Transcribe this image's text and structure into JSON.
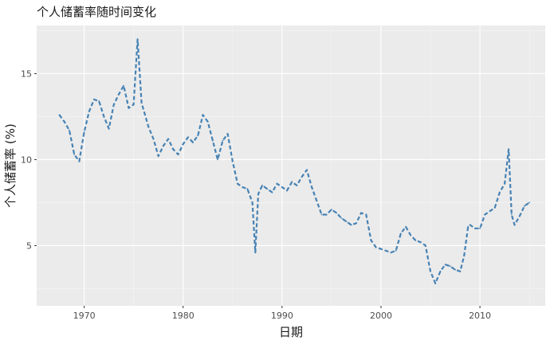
{
  "chart_data": {
    "type": "line",
    "title": "个人储蓄率随时间变化",
    "xlabel": "日期",
    "ylabel": "个人储蓄率 (%)",
    "xlim": [
      1965.2,
      2016.6
    ],
    "ylim": [
      1.5,
      17.8
    ],
    "x_ticks": [
      1970,
      1980,
      1990,
      2000,
      2010
    ],
    "x_tick_labels": [
      "1970",
      "1980",
      "1990",
      "2000",
      "2010"
    ],
    "y_ticks": [
      5,
      10,
      15
    ],
    "y_tick_labels": [
      "5",
      "10",
      "15"
    ],
    "grid": true,
    "line_style": "dashed",
    "series": [
      {
        "name": "",
        "color": "#4682B4",
        "x": [
          1967.5,
          1968.0,
          1968.5,
          1969.0,
          1969.5,
          1970.0,
          1970.5,
          1971.0,
          1971.5,
          1972.0,
          1972.5,
          1973.0,
          1973.5,
          1974.0,
          1974.5,
          1975.0,
          1975.4,
          1975.8,
          1976.5,
          1977.0,
          1977.5,
          1978.0,
          1978.5,
          1979.0,
          1979.5,
          1980.0,
          1980.5,
          1981.0,
          1981.5,
          1982.0,
          1982.5,
          1983.0,
          1983.5,
          1984.0,
          1984.5,
          1985.0,
          1985.5,
          1986.0,
          1986.5,
          1987.0,
          1987.3,
          1987.6,
          1988.0,
          1988.5,
          1989.0,
          1989.5,
          1990.0,
          1990.5,
          1991.0,
          1991.5,
          1992.0,
          1992.5,
          1993.0,
          1993.5,
          1994.0,
          1994.5,
          1995.0,
          1995.5,
          1996.0,
          1996.5,
          1997.0,
          1997.5,
          1998.0,
          1998.5,
          1999.0,
          1999.5,
          2000.0,
          2000.5,
          2001.0,
          2001.5,
          2002.0,
          2002.5,
          2003.0,
          2003.5,
          2004.0,
          2004.5,
          2005.0,
          2005.5,
          2006.0,
          2006.5,
          2007.0,
          2007.5,
          2008.0,
          2008.4,
          2008.8,
          2009.0,
          2009.5,
          2010.0,
          2010.5,
          2011.0,
          2011.5,
          2012.0,
          2012.5,
          2012.9,
          2013.2,
          2013.5,
          2014.0,
          2014.5,
          2015.0
        ],
        "y": [
          12.6,
          12.2,
          11.7,
          10.3,
          9.9,
          11.6,
          12.8,
          13.5,
          13.4,
          12.5,
          11.8,
          13.2,
          13.8,
          14.3,
          13.0,
          13.2,
          17.0,
          13.3,
          11.9,
          11.2,
          10.2,
          10.8,
          11.2,
          10.6,
          10.3,
          10.9,
          11.3,
          11.0,
          11.4,
          12.6,
          12.2,
          11.1,
          10.0,
          11.1,
          11.5,
          9.9,
          8.6,
          8.4,
          8.3,
          7.5,
          4.6,
          8.0,
          8.5,
          8.3,
          8.1,
          8.6,
          8.4,
          8.2,
          8.7,
          8.5,
          9.0,
          9.4,
          8.4,
          7.6,
          6.8,
          6.8,
          7.1,
          6.9,
          6.6,
          6.4,
          6.2,
          6.3,
          6.9,
          6.8,
          5.3,
          4.9,
          4.8,
          4.7,
          4.6,
          4.7,
          5.7,
          6.1,
          5.6,
          5.3,
          5.2,
          5.0,
          3.5,
          2.8,
          3.5,
          3.9,
          3.8,
          3.6,
          3.5,
          4.4,
          6.1,
          6.2,
          6.0,
          6.0,
          6.8,
          7.0,
          7.2,
          8.1,
          8.6,
          10.6,
          6.8,
          6.2,
          6.7,
          7.3,
          7.5
        ]
      }
    ]
  }
}
